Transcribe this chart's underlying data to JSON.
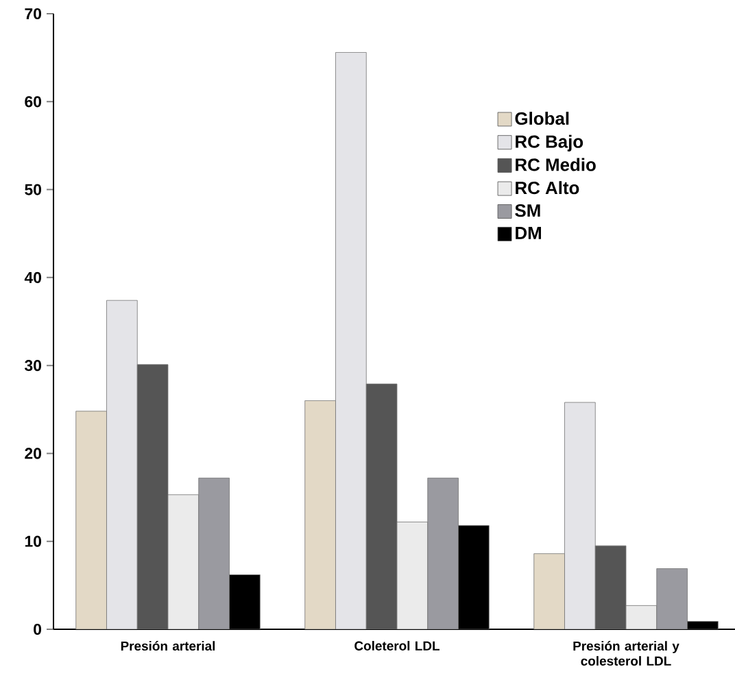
{
  "chart_data": {
    "type": "bar",
    "categories": [
      "Presión arterial",
      "Coleterol LDL",
      "Presión arterial y colesterol LDL"
    ],
    "series": [
      {
        "name": "Global",
        "color": "#e3d9c6",
        "values": [
          24.8,
          26.0,
          8.6
        ]
      },
      {
        "name": "RC Bajo",
        "color": "#e4e4e8",
        "values": [
          37.4,
          65.6,
          25.8
        ]
      },
      {
        "name": "RC Medio",
        "color": "#555555",
        "values": [
          30.1,
          27.9,
          9.5
        ]
      },
      {
        "name": "RC Alto",
        "color": "#ebebeb",
        "values": [
          15.3,
          12.2,
          2.7
        ]
      },
      {
        "name": "SM",
        "color": "#9a9aa0",
        "values": [
          17.2,
          17.2,
          6.9
        ]
      },
      {
        "name": "DM",
        "color": "#000000",
        "values": [
          6.2,
          11.8,
          0.9
        ]
      }
    ],
    "ylim": [
      0,
      70
    ],
    "yticks": [
      0,
      10,
      20,
      30,
      40,
      50,
      60,
      70
    ],
    "legend": "top right"
  }
}
